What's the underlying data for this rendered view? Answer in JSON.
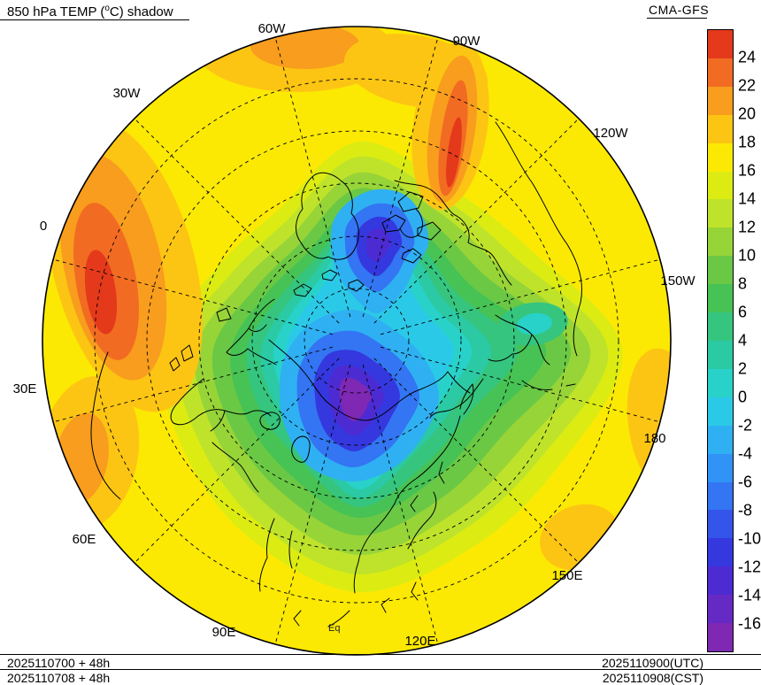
{
  "header": {
    "title_prefix": "850 hPa TEMP (",
    "title_sup": "o",
    "title_suffix": "C) shadow",
    "model": "CMA-GFS"
  },
  "map": {
    "projection": "north-polar-stereographic",
    "longitude_labels": [
      "60W",
      "90W",
      "30W",
      "120W",
      "0",
      "150W",
      "30E",
      "180",
      "60E",
      "150E",
      "90E",
      "120E"
    ],
    "equator_label": "Eq"
  },
  "colorbar": {
    "units": "degC",
    "tick_labels": [
      "24",
      "22",
      "20",
      "18",
      "16",
      "14",
      "12",
      "10",
      "8",
      "6",
      "4",
      "2",
      "0",
      "-2",
      "-4",
      "-6",
      "-8",
      "-10",
      "-12",
      "-14",
      "-16"
    ],
    "colors_top_to_bottom": [
      "#e4391b",
      "#f26b22",
      "#f89d1d",
      "#fdc513",
      "#fce903",
      "#dcec12",
      "#bfe32a",
      "#97d438",
      "#6ac845",
      "#47c254",
      "#35c57e",
      "#2bcaa4",
      "#28d2c8",
      "#2bc9e8",
      "#2fb0f2",
      "#3293f6",
      "#3375f2",
      "#3355ea",
      "#3438de",
      "#4d2bd3",
      "#662ac4",
      "#7e28b4"
    ]
  },
  "footer": {
    "init_utc": "2025110700 + 48h",
    "init_cst": "2025110708 + 48h",
    "valid_utc": "2025110900(UTC)",
    "valid_cst": "2025110908(CST)"
  }
}
